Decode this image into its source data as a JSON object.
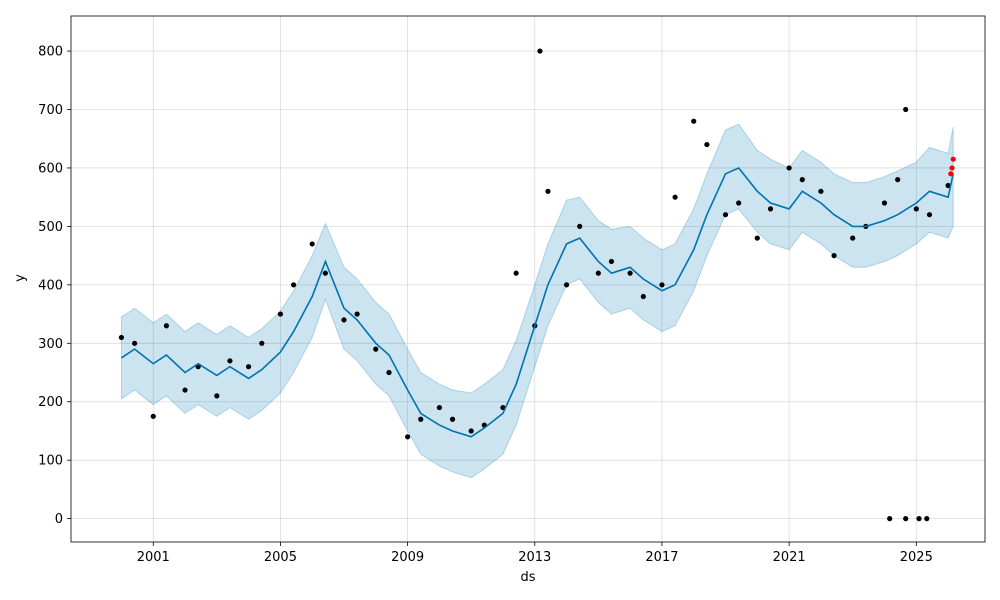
{
  "chart_data": {
    "type": "line",
    "title": "",
    "xlabel": "ds",
    "ylabel": "y",
    "x_ticks": [
      "2001",
      "2005",
      "2009",
      "2013",
      "2017",
      "2021",
      "2025"
    ],
    "y_ticks": [
      0,
      100,
      200,
      300,
      400,
      500,
      600,
      700,
      800
    ],
    "xlim": [
      "1998-06-01",
      "2027-03-01"
    ],
    "ylim": [
      -40,
      860
    ],
    "grid": true,
    "legend": "none",
    "colors": {
      "observed": "#000000",
      "forecast_line": "#0072B2",
      "uncertainty_band": "#0072B2",
      "recent_points": "#ff0000"
    },
    "series": [
      {
        "name": "yhat",
        "x": [
          "2000-01-01",
          "2000-06-01",
          "2001-01-01",
          "2001-06-01",
          "2002-01-01",
          "2002-06-01",
          "2003-01-01",
          "2003-06-01",
          "2004-01-01",
          "2004-06-01",
          "2005-01-01",
          "2005-06-01",
          "2006-01-01",
          "2006-06-01",
          "2007-01-01",
          "2007-06-01",
          "2008-01-01",
          "2008-06-01",
          "2009-01-01",
          "2009-06-01",
          "2010-01-01",
          "2010-06-01",
          "2011-01-01",
          "2011-06-01",
          "2012-01-01",
          "2012-06-01",
          "2013-01-01",
          "2013-06-01",
          "2014-01-01",
          "2014-06-01",
          "2015-01-01",
          "2015-06-01",
          "2016-01-01",
          "2016-06-01",
          "2017-01-01",
          "2017-06-01",
          "2018-01-01",
          "2018-06-01",
          "2019-01-01",
          "2019-06-01",
          "2020-01-01",
          "2020-06-01",
          "2021-01-01",
          "2021-06-01",
          "2022-01-01",
          "2022-06-01",
          "2023-01-01",
          "2023-06-01",
          "2024-01-01",
          "2024-06-01",
          "2025-01-01",
          "2025-06-01",
          "2026-01-01",
          "2026-03-01"
        ],
        "y": [
          275,
          290,
          265,
          280,
          250,
          265,
          245,
          260,
          240,
          255,
          285,
          320,
          380,
          440,
          360,
          340,
          300,
          280,
          220,
          180,
          160,
          150,
          140,
          155,
          180,
          230,
          330,
          400,
          470,
          480,
          440,
          420,
          430,
          410,
          390,
          400,
          460,
          520,
          590,
          600,
          560,
          540,
          530,
          560,
          540,
          520,
          500,
          500,
          510,
          520,
          540,
          560,
          550,
          590
        ]
      },
      {
        "name": "yhat_upper",
        "x": [
          "2000-01-01",
          "2000-06-01",
          "2001-01-01",
          "2001-06-01",
          "2002-01-01",
          "2002-06-01",
          "2003-01-01",
          "2003-06-01",
          "2004-01-01",
          "2004-06-01",
          "2005-01-01",
          "2005-06-01",
          "2006-01-01",
          "2006-06-01",
          "2007-01-01",
          "2007-06-01",
          "2008-01-01",
          "2008-06-01",
          "2009-01-01",
          "2009-06-01",
          "2010-01-01",
          "2010-06-01",
          "2011-01-01",
          "2011-06-01",
          "2012-01-01",
          "2012-06-01",
          "2013-01-01",
          "2013-06-01",
          "2014-01-01",
          "2014-06-01",
          "2015-01-01",
          "2015-06-01",
          "2016-01-01",
          "2016-06-01",
          "2017-01-01",
          "2017-06-01",
          "2018-01-01",
          "2018-06-01",
          "2019-01-01",
          "2019-06-01",
          "2020-01-01",
          "2020-06-01",
          "2021-01-01",
          "2021-06-01",
          "2022-01-01",
          "2022-06-01",
          "2023-01-01",
          "2023-06-01",
          "2024-01-01",
          "2024-06-01",
          "2025-01-01",
          "2025-06-01",
          "2026-01-01",
          "2026-03-01"
        ],
        "y": [
          345,
          360,
          335,
          350,
          320,
          335,
          315,
          330,
          310,
          325,
          355,
          390,
          450,
          505,
          430,
          410,
          370,
          350,
          290,
          250,
          230,
          220,
          215,
          230,
          255,
          305,
          400,
          470,
          545,
          550,
          510,
          495,
          500,
          480,
          460,
          470,
          530,
          590,
          665,
          675,
          630,
          615,
          600,
          630,
          610,
          590,
          575,
          575,
          585,
          595,
          610,
          635,
          625,
          670
        ]
      },
      {
        "name": "yhat_lower",
        "x": [
          "2000-01-01",
          "2000-06-01",
          "2001-01-01",
          "2001-06-01",
          "2002-01-01",
          "2002-06-01",
          "2003-01-01",
          "2003-06-01",
          "2004-01-01",
          "2004-06-01",
          "2005-01-01",
          "2005-06-01",
          "2006-01-01",
          "2006-06-01",
          "2007-01-01",
          "2007-06-01",
          "2008-01-01",
          "2008-06-01",
          "2009-01-01",
          "2009-06-01",
          "2010-01-01",
          "2010-06-01",
          "2011-01-01",
          "2011-06-01",
          "2012-01-01",
          "2012-06-01",
          "2013-01-01",
          "2013-06-01",
          "2014-01-01",
          "2014-06-01",
          "2015-01-01",
          "2015-06-01",
          "2016-01-01",
          "2016-06-01",
          "2017-01-01",
          "2017-06-01",
          "2018-01-01",
          "2018-06-01",
          "2019-01-01",
          "2019-06-01",
          "2020-01-01",
          "2020-06-01",
          "2021-01-01",
          "2021-06-01",
          "2022-01-01",
          "2022-06-01",
          "2023-01-01",
          "2023-06-01",
          "2024-01-01",
          "2024-06-01",
          "2025-01-01",
          "2025-06-01",
          "2026-01-01",
          "2026-03-01"
        ],
        "y": [
          205,
          220,
          195,
          210,
          180,
          195,
          175,
          190,
          170,
          185,
          215,
          250,
          310,
          375,
          290,
          270,
          230,
          210,
          150,
          110,
          90,
          80,
          70,
          85,
          110,
          160,
          260,
          330,
          400,
          410,
          370,
          350,
          360,
          340,
          320,
          330,
          390,
          450,
          520,
          530,
          490,
          470,
          460,
          490,
          470,
          450,
          430,
          430,
          440,
          450,
          470,
          490,
          480,
          500
        ]
      },
      {
        "name": "y",
        "x": [
          "2000-01-01",
          "2000-06-01",
          "2001-01-01",
          "2001-06-01",
          "2002-01-01",
          "2002-06-01",
          "2003-01-01",
          "2003-06-01",
          "2004-01-01",
          "2004-06-01",
          "2005-01-01",
          "2005-06-01",
          "2006-01-01",
          "2006-06-01",
          "2007-01-01",
          "2007-06-01",
          "2008-01-01",
          "2008-06-01",
          "2009-01-01",
          "2009-06-01",
          "2010-01-01",
          "2010-06-01",
          "2011-01-01",
          "2011-06-01",
          "2012-01-01",
          "2012-06-01",
          "2013-01-01",
          "2013-03-01",
          "2013-06-01",
          "2014-01-01",
          "2014-06-01",
          "2015-01-01",
          "2015-06-01",
          "2016-01-01",
          "2016-06-01",
          "2017-01-01",
          "2017-06-01",
          "2018-01-01",
          "2018-06-01",
          "2019-01-01",
          "2019-06-01",
          "2020-01-01",
          "2020-06-01",
          "2021-01-01",
          "2021-06-01",
          "2022-01-01",
          "2022-06-01",
          "2023-01-01",
          "2023-06-01",
          "2024-01-01",
          "2024-06-01",
          "2024-09-01",
          "2025-01-01",
          "2025-06-01",
          "2026-01-01"
        ],
        "y": [
          310,
          300,
          175,
          330,
          220,
          260,
          210,
          270,
          260,
          300,
          350,
          400,
          470,
          420,
          340,
          350,
          290,
          250,
          140,
          170,
          190,
          170,
          150,
          160,
          190,
          420,
          330,
          800,
          560,
          400,
          500,
          420,
          440,
          420,
          380,
          400,
          550,
          680,
          640,
          520,
          540,
          480,
          530,
          600,
          580,
          560,
          450,
          480,
          500,
          540,
          580,
          700,
          530,
          520,
          570
        ]
      },
      {
        "name": "outliers_at_zero",
        "x": [
          "2024-03-01",
          "2024-09-01",
          "2025-02-01",
          "2025-05-01"
        ],
        "y": [
          0,
          0,
          0,
          0
        ]
      },
      {
        "name": "recent",
        "x": [
          "2026-02-01",
          "2026-02-15",
          "2026-03-01"
        ],
        "y": [
          590,
          600,
          615
        ]
      }
    ]
  }
}
